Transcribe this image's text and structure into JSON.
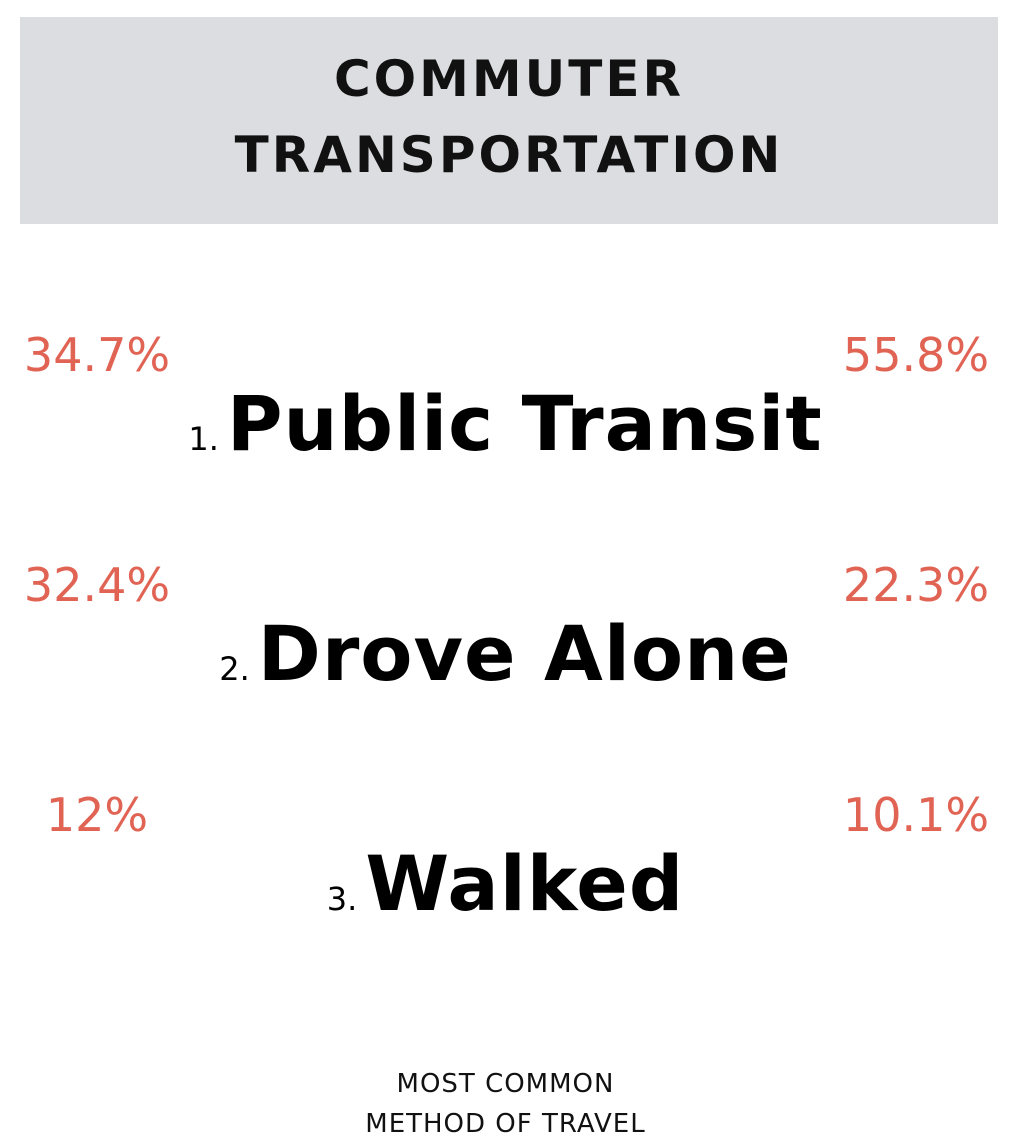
{
  "header": {
    "title_lines": [
      "COMMUTER",
      "TRANSPORTATION"
    ]
  },
  "items": [
    {
      "rank": "1.",
      "label": "Public Transit",
      "left_value": "34.7%",
      "right_value": "55.8%"
    },
    {
      "rank": "2.",
      "label": "Drove Alone",
      "left_value": "32.4%",
      "right_value": "22.3%"
    },
    {
      "rank": "3.",
      "label": "Walked",
      "left_value": "12%",
      "right_value": "10.1%"
    }
  ],
  "footer": {
    "lines": [
      "MOST COMMON",
      "METHOD OF TRAVEL"
    ]
  }
}
